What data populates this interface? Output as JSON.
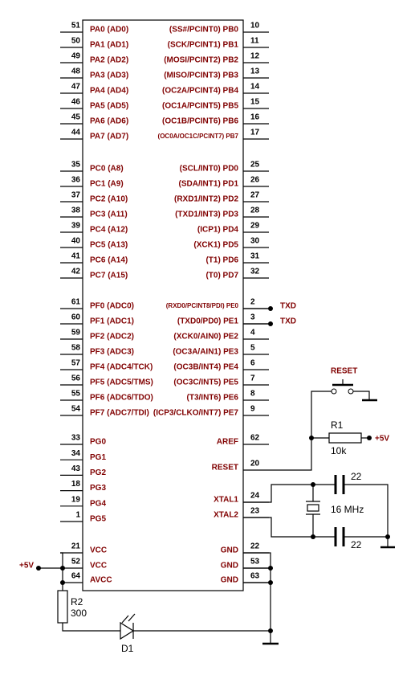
{
  "left_pins": [
    {
      "number": "51",
      "label": "PA0 (AD0)"
    },
    {
      "number": "50",
      "label": "PA1 (AD1)"
    },
    {
      "number": "49",
      "label": "PA2 (AD2)"
    },
    {
      "number": "48",
      "label": "PA3 (AD3)"
    },
    {
      "number": "47",
      "label": "PA4 (AD4)"
    },
    {
      "number": "46",
      "label": "PA5 (AD5)"
    },
    {
      "number": "45",
      "label": "PA6 (AD6)"
    },
    {
      "number": "44",
      "label": "PA7 (AD7)"
    },
    {
      "number": "35",
      "label": "PC0 (A8)"
    },
    {
      "number": "36",
      "label": "PC1 (A9)"
    },
    {
      "number": "37",
      "label": "PC2 (A10)"
    },
    {
      "number": "38",
      "label": "PC3 (A11)"
    },
    {
      "number": "39",
      "label": "PC4 (A12)"
    },
    {
      "number": "40",
      "label": "PC5 (A13)"
    },
    {
      "number": "41",
      "label": "PC6 (A14)"
    },
    {
      "number": "42",
      "label": "PC7 (A15)"
    },
    {
      "number": "61",
      "label": "PF0 (ADC0)"
    },
    {
      "number": "60",
      "label": "PF1 (ADC1)"
    },
    {
      "number": "59",
      "label": "PF2 (ADC2)"
    },
    {
      "number": "58",
      "label": "PF3 (ADC3)"
    },
    {
      "number": "57",
      "label": "PF4 (ADC4/TCK)"
    },
    {
      "number": "56",
      "label": "PF5 (ADC5/TMS)"
    },
    {
      "number": "55",
      "label": "PF6 (ADC6/TDO)"
    },
    {
      "number": "54",
      "label": "PF7 (ADC7/TDI)"
    },
    {
      "number": "33",
      "label": "PG0"
    },
    {
      "number": "34",
      "label": "PG1"
    },
    {
      "number": "43",
      "label": "PG2"
    },
    {
      "number": "18",
      "label": "PG3"
    },
    {
      "number": "19",
      "label": "PG4"
    },
    {
      "number": "1",
      "label": "PG5"
    },
    {
      "number": "21",
      "label": "VCC"
    },
    {
      "number": "52",
      "label": "VCC"
    },
    {
      "number": "64",
      "label": "AVCC"
    }
  ],
  "right_pins": [
    {
      "number": "10",
      "label": "(SS#/PCINT0) PB0"
    },
    {
      "number": "11",
      "label": "(SCK/PCINT1) PB1"
    },
    {
      "number": "12",
      "label": "(MOSI/PCINT2) PB2"
    },
    {
      "number": "13",
      "label": "(MISO/PCINT3) PB3"
    },
    {
      "number": "14",
      "label": "(OC2A/PCINT4) PB4"
    },
    {
      "number": "15",
      "label": "(OC1A/PCINT5) PB5"
    },
    {
      "number": "16",
      "label": "(OC1B/PCINT6) PB6"
    },
    {
      "number": "17",
      "label": "(OC0A/OC1C/PCINT7) PB7"
    },
    {
      "number": "25",
      "label": "(SCL/INT0) PD0"
    },
    {
      "number": "26",
      "label": "(SDA/INT1) PD1"
    },
    {
      "number": "27",
      "label": "(RXD1/INT2) PD2"
    },
    {
      "number": "28",
      "label": "(TXD1/INT3) PD3"
    },
    {
      "number": "29",
      "label": "(ICP1) PD4"
    },
    {
      "number": "30",
      "label": "(XCK1) PD5"
    },
    {
      "number": "31",
      "label": "(T1) PD6"
    },
    {
      "number": "32",
      "label": "(T0) PD7"
    },
    {
      "number": "2",
      "label": "(RXD0/PCINT8/PDI) PE0"
    },
    {
      "number": "3",
      "label": "(TXD0/PD0) PE1"
    },
    {
      "number": "4",
      "label": "(XCK0/AIN0) PE2"
    },
    {
      "number": "5",
      "label": "(OC3A/AIN1) PE3"
    },
    {
      "number": "6",
      "label": "(OC3B/INT4) PE4"
    },
    {
      "number": "7",
      "label": "(OC3C/INT5) PE5"
    },
    {
      "number": "8",
      "label": "(T3/INT6) PE6"
    },
    {
      "number": "9",
      "label": "(ICP3/CLKO/INT7) PE7"
    },
    {
      "number": "62",
      "label": "AREF"
    },
    {
      "number": "20",
      "label": "RESET"
    },
    {
      "number": "24",
      "label": "XTAL1"
    },
    {
      "number": "23",
      "label": "XTAL2"
    },
    {
      "number": "22",
      "label": "GND"
    },
    {
      "number": "53",
      "label": "GND"
    },
    {
      "number": "63",
      "label": "GND"
    }
  ],
  "components": {
    "txd_0": "TXD",
    "txd_1": "TXD",
    "reset_button": "RESET",
    "r1_name": "R1",
    "r1_value": "10k",
    "r1_supply": "+5V",
    "c1_value": "22",
    "crystal": "16 MHz",
    "c2_value": "22",
    "vcc_supply": "+5V",
    "r2_name": "R2",
    "r2_value": "300",
    "d1_name": "D1"
  }
}
